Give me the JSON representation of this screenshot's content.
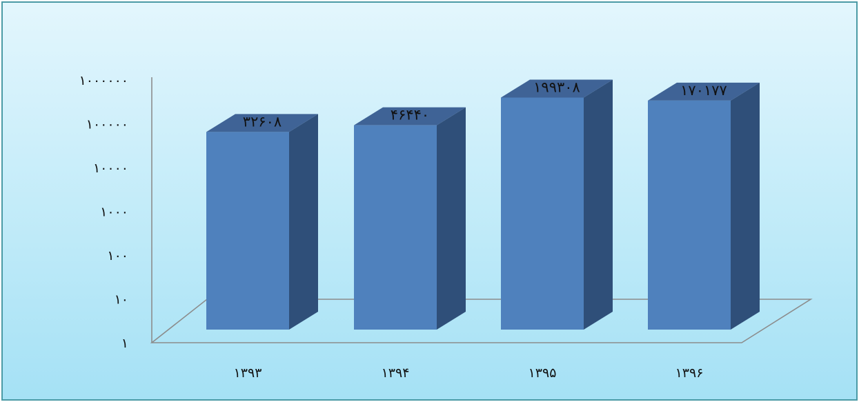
{
  "chart_data": {
    "type": "bar",
    "scale": "log",
    "ylim": [
      1,
      1000000
    ],
    "y_ticks": [
      "۱",
      "۱۰",
      "۱۰۰",
      "۱۰۰۰",
      "۱۰۰۰۰",
      "۱۰۰۰۰۰",
      "۱۰۰۰۰۰۰"
    ],
    "y_tick_values": [
      1,
      10,
      100,
      1000,
      10000,
      100000,
      1000000
    ],
    "categories": [
      "۱۳۹۳",
      "۱۳۹۴",
      "۱۳۹۵",
      "۱۳۹۶"
    ],
    "values": [
      32608,
      46440,
      199308,
      170177
    ],
    "data_labels": [
      "۳۲۶۰۸",
      "۴۶۴۴۰",
      "۱۹۹۳۰۸",
      "۱۷۰۱۷۷"
    ],
    "colors": {
      "bar_front": "#4f81bd",
      "bar_top": "#3f6396",
      "bar_side": "#2f4f79",
      "floor_line": "#8c8c8c"
    },
    "legend": "none",
    "grid": false
  }
}
